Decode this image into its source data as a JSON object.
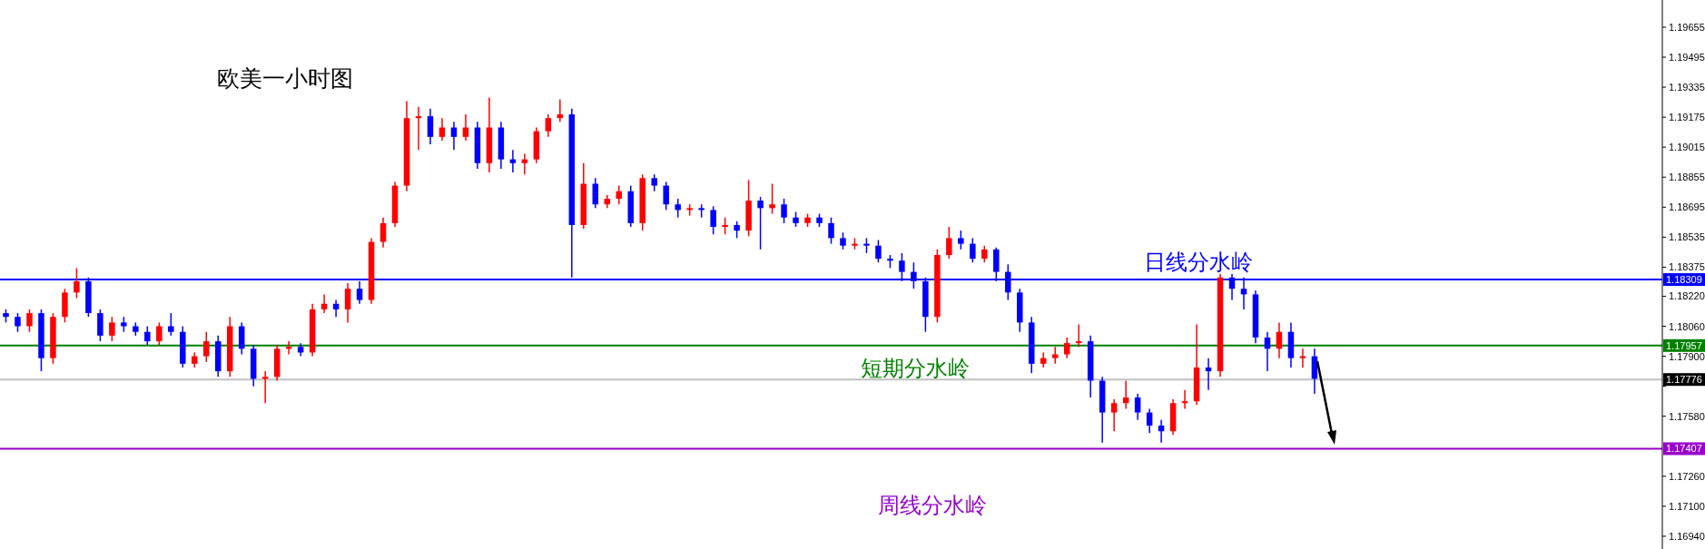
{
  "chart_data": {
    "type": "candlestick",
    "title": "欧美一小时图",
    "categories": [
      null,
      null,
      null,
      null,
      null,
      null,
      null,
      null,
      null,
      null,
      null,
      null,
      null,
      null,
      null,
      null,
      null,
      null,
      null,
      null,
      null,
      null,
      null,
      null,
      null,
      null,
      null,
      null,
      null,
      null,
      null,
      null,
      null,
      null,
      null,
      null,
      null,
      null,
      null,
      null,
      null,
      null,
      null,
      null,
      null,
      null,
      null,
      null,
      null,
      null,
      null,
      null,
      null,
      null,
      null,
      null,
      null,
      null,
      null,
      null,
      null,
      null,
      null,
      null,
      null,
      null,
      null,
      null,
      null,
      null,
      null,
      null,
      null,
      null,
      null,
      null,
      null,
      null,
      null,
      null,
      null,
      null,
      null,
      null,
      null,
      null,
      null,
      null,
      null,
      null,
      null,
      null,
      null,
      null,
      null,
      null,
      null,
      null,
      null,
      null,
      null,
      null,
      null,
      null,
      null,
      null,
      null,
      null,
      null,
      null,
      null,
      null,
      null,
      null,
      null,
      null,
      null,
      null,
      null,
      null,
      null,
      null,
      null,
      null,
      null,
      null,
      null,
      null,
      null,
      null,
      null,
      null,
      null,
      null,
      null,
      null,
      null,
      null,
      null,
      null,
      null
    ],
    "ohlc": [
      [
        1.1813,
        1.1815,
        1.1808,
        1.1811
      ],
      [
        1.1811,
        1.1813,
        1.1803,
        1.1806
      ],
      [
        1.1806,
        1.1815,
        1.1803,
        1.1813
      ],
      [
        1.1813,
        1.1815,
        1.1782,
        1.1789
      ],
      [
        1.1789,
        1.1813,
        1.1786,
        1.1811
      ],
      [
        1.1811,
        1.1826,
        1.1808,
        1.1824
      ],
      [
        1.1824,
        1.1837,
        1.1821,
        1.183
      ],
      [
        1.183,
        1.1832,
        1.1811,
        1.1813
      ],
      [
        1.1813,
        1.1815,
        1.1798,
        1.1801
      ],
      [
        1.1801,
        1.1811,
        1.1798,
        1.1808
      ],
      [
        1.1808,
        1.1811,
        1.1803,
        1.1806
      ],
      [
        1.1806,
        1.1808,
        1.1801,
        1.1803
      ],
      [
        1.1803,
        1.1806,
        1.1796,
        1.1798
      ],
      [
        1.1798,
        1.1808,
        1.1796,
        1.1806
      ],
      [
        1.1806,
        1.1813,
        1.1801,
        1.1803
      ],
      [
        1.1803,
        1.1806,
        1.1784,
        1.1786
      ],
      [
        1.1786,
        1.1792,
        1.1784,
        1.179
      ],
      [
        1.179,
        1.1803,
        1.1787,
        1.1798
      ],
      [
        1.1798,
        1.1801,
        1.1779,
        1.1782
      ],
      [
        1.1782,
        1.1811,
        1.1779,
        1.1806
      ],
      [
        1.1806,
        1.1808,
        1.1791,
        1.1794
      ],
      [
        1.1794,
        1.1796,
        1.1774,
        1.1778
      ],
      [
        1.1778,
        1.1782,
        1.1765,
        1.1779
      ],
      [
        1.1779,
        1.1796,
        1.1777,
        1.1794
      ],
      [
        1.1794,
        1.1798,
        1.1791,
        1.1795
      ],
      [
        1.1795,
        1.1797,
        1.179,
        1.1792
      ],
      [
        1.1792,
        1.1818,
        1.179,
        1.1815
      ],
      [
        1.1815,
        1.1823,
        1.1813,
        1.1818
      ],
      [
        1.1818,
        1.182,
        1.1811,
        1.1815
      ],
      [
        1.1815,
        1.1829,
        1.1808,
        1.1826
      ],
      [
        1.1826,
        1.183,
        1.1818,
        1.182
      ],
      [
        1.182,
        1.1853,
        1.1818,
        1.1851
      ],
      [
        1.1851,
        1.1864,
        1.1848,
        1.1861
      ],
      [
        1.1861,
        1.1883,
        1.1859,
        1.1881
      ],
      [
        1.1881,
        1.1926,
        1.1878,
        1.1917
      ],
      [
        1.1917,
        1.1923,
        1.19,
        1.1918
      ],
      [
        1.1918,
        1.1922,
        1.1903,
        1.1907
      ],
      [
        1.1907,
        1.1917,
        1.1905,
        1.1912
      ],
      [
        1.1912,
        1.1915,
        1.19,
        1.1907
      ],
      [
        1.1907,
        1.1919,
        1.1905,
        1.1912
      ],
      [
        1.1912,
        1.1915,
        1.189,
        1.1893
      ],
      [
        1.1893,
        1.1928,
        1.1888,
        1.1912
      ],
      [
        1.1912,
        1.1915,
        1.189,
        1.1895
      ],
      [
        1.1895,
        1.19,
        1.1888,
        1.1893
      ],
      [
        1.1893,
        1.1898,
        1.1887,
        1.1895
      ],
      [
        1.1895,
        1.1912,
        1.1893,
        1.191
      ],
      [
        1.191,
        1.1919,
        1.1907,
        1.1917
      ],
      [
        1.1917,
        1.1927,
        1.1915,
        1.1919
      ],
      [
        1.1919,
        1.1922,
        1.1832,
        1.186
      ],
      [
        1.186,
        1.1893,
        1.1858,
        1.1882
      ],
      [
        1.1882,
        1.1885,
        1.1869,
        1.1871
      ],
      [
        1.1871,
        1.1876,
        1.1869,
        1.1874
      ],
      [
        1.1874,
        1.1881,
        1.1871,
        1.1878
      ],
      [
        1.1878,
        1.1881,
        1.1859,
        1.1861
      ],
      [
        1.1861,
        1.1887,
        1.1857,
        1.1885
      ],
      [
        1.1885,
        1.1887,
        1.1878,
        1.1881
      ],
      [
        1.1881,
        1.1883,
        1.1868,
        1.1871
      ],
      [
        1.1871,
        1.1874,
        1.1864,
        1.1868
      ],
      [
        1.1868,
        1.1871,
        1.1865,
        1.1869
      ],
      [
        1.1869,
        1.1871,
        1.1864,
        1.1868
      ],
      [
        1.1868,
        1.187,
        1.1855,
        1.1859
      ],
      [
        1.1859,
        1.1864,
        1.1855,
        1.186
      ],
      [
        1.186,
        1.1862,
        1.1853,
        1.1857
      ],
      [
        1.1857,
        1.1884,
        1.1854,
        1.1873
      ],
      [
        1.1873,
        1.1875,
        1.1847,
        1.1869
      ],
      [
        1.1869,
        1.1882,
        1.1866,
        1.1871
      ],
      [
        1.1871,
        1.1874,
        1.1861,
        1.1864
      ],
      [
        1.1864,
        1.1867,
        1.1859,
        1.1861
      ],
      [
        1.1861,
        1.1866,
        1.1859,
        1.1864
      ],
      [
        1.1864,
        1.1866,
        1.1859,
        1.1861
      ],
      [
        1.1861,
        1.1864,
        1.185,
        1.1853
      ],
      [
        1.1853,
        1.1856,
        1.1847,
        1.1849
      ],
      [
        1.1849,
        1.1853,
        1.1847,
        1.185
      ],
      [
        1.185,
        1.1853,
        1.1845,
        1.1849
      ],
      [
        1.1849,
        1.1852,
        1.184,
        1.1842
      ],
      [
        1.1842,
        1.1844,
        1.1837,
        1.1841
      ],
      [
        1.1841,
        1.1845,
        1.183,
        1.1835
      ],
      [
        1.1835,
        1.184,
        1.1826,
        1.183
      ],
      [
        1.183,
        1.1832,
        1.1803,
        1.1811
      ],
      [
        1.1811,
        1.1847,
        1.1808,
        1.1844
      ],
      [
        1.1844,
        1.1859,
        1.1842,
        1.1853
      ],
      [
        1.1853,
        1.1857,
        1.1847,
        1.185
      ],
      [
        1.185,
        1.1853,
        1.184,
        1.1842
      ],
      [
        1.1842,
        1.1849,
        1.184,
        1.1847
      ],
      [
        1.1847,
        1.1848,
        1.183,
        1.1835
      ],
      [
        1.1835,
        1.1839,
        1.182,
        1.1824
      ],
      [
        1.1824,
        1.1826,
        1.1803,
        1.1808
      ],
      [
        1.1808,
        1.1811,
        1.1781,
        1.1786
      ],
      [
        1.1786,
        1.1792,
        1.1784,
        1.1789
      ],
      [
        1.1789,
        1.1795,
        1.1786,
        1.1791
      ],
      [
        1.1791,
        1.18,
        1.1789,
        1.1797
      ],
      [
        1.1797,
        1.1807,
        1.1795,
        1.1798
      ],
      [
        1.1798,
        1.1801,
        1.1768,
        1.1777
      ],
      [
        1.1777,
        1.1779,
        1.1744,
        1.176
      ],
      [
        1.176,
        1.1767,
        1.175,
        1.1765
      ],
      [
        1.1765,
        1.1777,
        1.1762,
        1.1768
      ],
      [
        1.1768,
        1.177,
        1.1756,
        1.176
      ],
      [
        1.176,
        1.1762,
        1.1749,
        1.1753
      ],
      [
        1.1753,
        1.1756,
        1.1744,
        1.175
      ],
      [
        1.175,
        1.1767,
        1.1748,
        1.1765
      ],
      [
        1.1765,
        1.1772,
        1.1762,
        1.1766
      ],
      [
        1.1766,
        1.1807,
        1.1764,
        1.1784
      ],
      [
        1.1784,
        1.1789,
        1.1772,
        1.1782
      ],
      [
        1.1782,
        1.1834,
        1.1779,
        1.1832
      ],
      [
        1.1832,
        1.1834,
        1.182,
        1.1826
      ],
      [
        1.1826,
        1.1832,
        1.1815,
        1.1823
      ],
      [
        1.1823,
        1.1825,
        1.1797,
        1.18
      ],
      [
        1.18,
        1.1803,
        1.1782,
        1.1794
      ],
      [
        1.1794,
        1.1808,
        1.1789,
        1.1803
      ],
      [
        1.1803,
        1.1808,
        1.1784,
        1.1789
      ],
      [
        1.1789,
        1.1794,
        1.1784,
        1.179
      ],
      [
        1.179,
        1.1794,
        1.177,
        1.1778
      ],
      null,
      null,
      null,
      null,
      null,
      null,
      null,
      null,
      null,
      null,
      null,
      null,
      null,
      null,
      null,
      null,
      null,
      null,
      null,
      null,
      null,
      null,
      null,
      null,
      null,
      null,
      null,
      null,
      null
    ],
    "colors": [
      "#0000ff",
      "#0000ff",
      "#ff0000",
      "#0000ff",
      "#ff0000",
      "#ff0000",
      "#ff0000",
      "#0000ff",
      "#0000ff",
      "#ff0000",
      "#0000ff",
      "#0000ff",
      "#0000ff",
      "#ff0000",
      "#0000ff",
      "#0000ff",
      "#ff0000",
      "#ff0000",
      "#0000ff",
      "#ff0000",
      "#0000ff",
      "#0000ff",
      "#ff0000",
      "#ff0000",
      "#ff0000",
      "#0000ff",
      "#ff0000",
      "#ff0000",
      "#0000ff",
      "#ff0000",
      "#0000ff",
      "#ff0000",
      "#ff0000",
      "#ff0000",
      "#ff0000",
      "#ff0000",
      "#0000ff",
      "#ff0000",
      "#0000ff",
      "#ff0000",
      "#0000ff",
      "#ff0000",
      "#0000ff",
      "#0000ff",
      "#ff0000",
      "#ff0000",
      "#ff0000",
      "#ff0000",
      "#0000ff",
      "#ff0000",
      "#0000ff",
      "#ff0000",
      "#ff0000",
      "#0000ff",
      "#ff0000",
      "#0000ff",
      "#0000ff",
      "#0000ff",
      "#ff0000",
      "#0000ff",
      "#0000ff",
      "#ff0000",
      "#0000ff",
      "#ff0000",
      "#0000ff",
      "#ff0000",
      "#0000ff",
      "#0000ff",
      "#ff0000",
      "#0000ff",
      "#0000ff",
      "#0000ff",
      "#ff0000",
      "#0000ff",
      "#0000ff",
      "#0000ff",
      "#0000ff",
      "#0000ff",
      "#0000ff",
      "#ff0000",
      "#ff0000",
      "#0000ff",
      "#0000ff",
      "#ff0000",
      "#0000ff",
      "#0000ff",
      "#0000ff",
      "#0000ff",
      "#ff0000",
      "#ff0000",
      "#ff0000",
      "#ff0000",
      "#0000ff",
      "#0000ff",
      "#ff0000",
      "#ff0000",
      "#0000ff",
      "#0000ff",
      "#0000ff",
      "#ff0000",
      "#ff0000",
      "#ff0000",
      "#0000ff",
      "#ff0000",
      "#0000ff",
      "#0000ff",
      "#0000ff",
      "#0000ff",
      "#ff0000",
      "#0000ff",
      "#ff0000",
      "#0000ff",
      null,
      null,
      null,
      null,
      null,
      null,
      null,
      null,
      null,
      null,
      null,
      null,
      null,
      null,
      null,
      null,
      null,
      null,
      null,
      null,
      null,
      null,
      null,
      null,
      null,
      null,
      null,
      null,
      null
    ],
    "ylim": [
      1.16872,
      1.198
    ],
    "yticks": [
      1.19655,
      1.19495,
      1.19335,
      1.19175,
      1.19015,
      1.18855,
      1.18695,
      1.18535,
      1.18375,
      {
        "value": 1.1822,
        "label": "1.18220"
      },
      {
        "value": 1.1806,
        "label": "1.18060"
      },
      {
        "value": 1.179,
        "label": "1.17900"
      },
      {
        "value": 1.1774,
        "label": null
      },
      {
        "value": 1.1758,
        "label": "1.17580"
      },
      {
        "value": 1.1726,
        "label": "1.17260"
      },
      {
        "value": 1.171,
        "label": "1.17100"
      },
      {
        "value": 1.1694,
        "label": "1.16940"
      }
    ],
    "tick_labels": "y",
    "ref_lines": [
      {
        "axis": "y",
        "value": 1.18309,
        "label": "1.18309",
        "color": "#0000ff"
      },
      {
        "axis": "y",
        "value": 1.17957,
        "label": "1.17957",
        "color": "#008000"
      },
      {
        "axis": "y",
        "value": 1.17776,
        "label": "1.17776",
        "color": "#c0c0c0"
      },
      {
        "axis": "y",
        "value": 1.17407,
        "label": "1.17407",
        "color": "#9900cc"
      }
    ],
    "annotations": [
      {
        "text": "日线分水岭",
        "y": 1.18309
      },
      {
        "text": "短期分水岭",
        "y": 1.17957
      },
      {
        "text": "周线分水岭",
        "y": 1.17407
      }
    ]
  }
}
